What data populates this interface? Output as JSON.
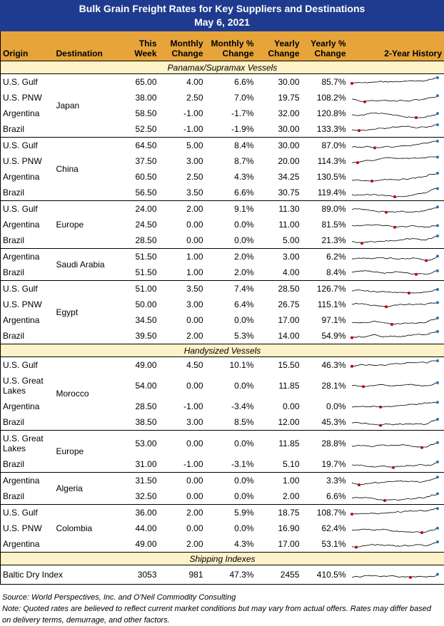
{
  "header": {
    "title": "Bulk Grain Freight Rates for Key Suppliers and Destinations",
    "date": "May 6, 2021",
    "columns": [
      "Origin",
      "Destination",
      "This Week",
      "Monthly Change",
      "Monthly % Change",
      "Yearly Change",
      "Yearly % Change",
      "2-Year History"
    ]
  },
  "sections": [
    {
      "title": "Panamax/Supramax Vessels",
      "groups": [
        {
          "destination": "Japan",
          "rows": [
            {
              "origin": "U.S. Gulf",
              "values": [
                "65.00",
                "4.00",
                "6.6%",
                "30.00",
                "85.7%"
              ]
            },
            {
              "origin": "U.S. PNW",
              "values": [
                "38.00",
                "2.50",
                "7.0%",
                "19.75",
                "108.2%"
              ]
            },
            {
              "origin": "Argentina",
              "values": [
                "58.50",
                "-1.00",
                "-1.7%",
                "32.00",
                "120.8%"
              ]
            },
            {
              "origin": "Brazil",
              "values": [
                "52.50",
                "-1.00",
                "-1.9%",
                "30.00",
                "133.3%"
              ]
            }
          ]
        },
        {
          "destination": "China",
          "rows": [
            {
              "origin": "U.S. Gulf",
              "values": [
                "64.50",
                "5.00",
                "8.4%",
                "30.00",
                "87.0%"
              ]
            },
            {
              "origin": "U.S. PNW",
              "values": [
                "37.50",
                "3.00",
                "8.7%",
                "20.00",
                "114.3%"
              ]
            },
            {
              "origin": "Argentina",
              "values": [
                "60.50",
                "2.50",
                "4.3%",
                "34.25",
                "130.5%"
              ]
            },
            {
              "origin": "Brazil",
              "values": [
                "56.50",
                "3.50",
                "6.6%",
                "30.75",
                "119.4%"
              ]
            }
          ]
        },
        {
          "destination": "Europe",
          "rows": [
            {
              "origin": "U.S. Gulf",
              "values": [
                "24.00",
                "2.00",
                "9.1%",
                "11.30",
                "89.0%"
              ]
            },
            {
              "origin": "Argentina",
              "values": [
                "24.50",
                "0.00",
                "0.0%",
                "11.00",
                "81.5%"
              ]
            },
            {
              "origin": "Brazil",
              "values": [
                "28.50",
                "0.00",
                "0.0%",
                "5.00",
                "21.3%"
              ]
            }
          ]
        },
        {
          "destination": "Saudi Arabia",
          "rows": [
            {
              "origin": "Argentina",
              "values": [
                "51.50",
                "1.00",
                "2.0%",
                "3.00",
                "6.2%"
              ]
            },
            {
              "origin": "Brazil",
              "values": [
                "51.50",
                "1.00",
                "2.0%",
                "4.00",
                "8.4%"
              ]
            }
          ]
        },
        {
          "destination": "Egypt",
          "rows": [
            {
              "origin": "U.S. Gulf",
              "values": [
                "51.00",
                "3.50",
                "7.4%",
                "28.50",
                "126.7%"
              ]
            },
            {
              "origin": "U.S. PNW",
              "values": [
                "50.00",
                "3.00",
                "6.4%",
                "26.75",
                "115.1%"
              ]
            },
            {
              "origin": "Argentina",
              "values": [
                "34.50",
                "0.00",
                "0.0%",
                "17.00",
                "97.1%"
              ]
            },
            {
              "origin": "Brazil",
              "values": [
                "39.50",
                "2.00",
                "5.3%",
                "14.00",
                "54.9%"
              ]
            }
          ]
        }
      ]
    },
    {
      "title": "Handysized Vessels",
      "groups": [
        {
          "destination": "Morocco",
          "rows": [
            {
              "origin": "U.S. Gulf",
              "values": [
                "49.00",
                "4.50",
                "10.1%",
                "15.50",
                "46.3%"
              ]
            },
            {
              "origin": "U.S. Great Lakes",
              "values": [
                "54.00",
                "0.00",
                "0.0%",
                "11.85",
                "28.1%"
              ]
            },
            {
              "origin": "Argentina",
              "values": [
                "28.50",
                "-1.00",
                "-3.4%",
                "0.00",
                "0.0%"
              ]
            },
            {
              "origin": "Brazil",
              "values": [
                "38.50",
                "3.00",
                "8.5%",
                "12.00",
                "45.3%"
              ]
            }
          ]
        },
        {
          "destination": "Europe",
          "rows": [
            {
              "origin": "U.S. Great Lakes",
              "values": [
                "53.00",
                "0.00",
                "0.0%",
                "11.85",
                "28.8%"
              ]
            },
            {
              "origin": "Brazil",
              "values": [
                "31.00",
                "-1.00",
                "-3.1%",
                "5.10",
                "19.7%"
              ]
            }
          ]
        },
        {
          "destination": "Algeria",
          "rows": [
            {
              "origin": "Argentina",
              "values": [
                "31.50",
                "0.00",
                "0.0%",
                "1.00",
                "3.3%"
              ]
            },
            {
              "origin": "Brazil",
              "values": [
                "32.50",
                "0.00",
                "0.0%",
                "2.00",
                "6.6%"
              ]
            }
          ]
        },
        {
          "destination": "Colombia",
          "rows": [
            {
              "origin": "U.S. Gulf",
              "values": [
                "36.00",
                "2.00",
                "5.9%",
                "18.75",
                "108.7%"
              ]
            },
            {
              "origin": "U.S. PNW",
              "values": [
                "44.00",
                "0.00",
                "0.0%",
                "16.90",
                "62.4%"
              ]
            },
            {
              "origin": "Argentina",
              "values": [
                "49.00",
                "2.00",
                "4.3%",
                "17.00",
                "53.1%"
              ]
            }
          ]
        }
      ]
    },
    {
      "title": "Shipping Indexes",
      "groups": [
        {
          "rows": [
            {
              "origin": "Baltic Dry Index",
              "values": [
                "3053",
                "981",
                "47.3%",
                "2455",
                "410.5%"
              ]
            }
          ]
        }
      ]
    }
  ],
  "notes": [
    "Source: World Perspectives, Inc. and O'Neil Commodity Consulting",
    "Note: Quoted rates are believed to reflect current market conditions but may vary from actual offers. Rates may differ based on delivery terms, demurrage, and other factors."
  ]
}
